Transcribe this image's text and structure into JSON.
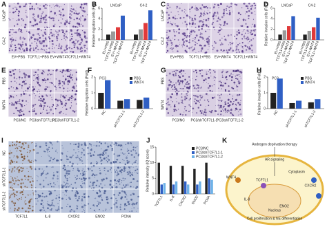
{
  "panel_labels": [
    "A",
    "B",
    "C",
    "D",
    "E",
    "F",
    "G",
    "H",
    "I",
    "J",
    "K"
  ],
  "panel_a": {
    "rows": [
      "LNCaP",
      "C4-2"
    ],
    "columns": [
      "EV+PBS",
      "TCF7L1+PBS",
      "EV+WNT4",
      "TCF7L1+WNT4"
    ]
  },
  "panel_c": {
    "rows": [
      "LNCaP",
      "C4-2"
    ],
    "columns": [
      "EV+PBS",
      "TCF7L1+PBS",
      "EV+WNT4",
      "TCF7L1+WNT4"
    ]
  },
  "panel_e": {
    "rows": [
      "PBS",
      "WNT4"
    ],
    "columns": [
      "PC3/NC",
      "PC3/shTCF7L1-1",
      "PC3/shTCF7L1-2"
    ]
  },
  "panel_g": {
    "rows": [
      "PBS",
      "WNT4"
    ],
    "columns": [
      "PC3/NC",
      "PC3/shTCF7L1-1",
      "PC3/shTCF7L1-2"
    ]
  },
  "panel_i": {
    "rows": [
      "NC",
      "shTCF7L1-1",
      "shTCF7L1-2"
    ],
    "columns": [
      "TCF7L1",
      "IL-8",
      "CXCR2",
      "ENO2",
      "PCNA"
    ]
  },
  "panel_k": {
    "texts": [
      "Androgen deprivation therapy",
      "AR signaling",
      "WNT4",
      "TCF7L1",
      "IL-8",
      "CXCR2",
      "ENO2",
      "Cytoplasm",
      "Nucleus",
      "Cell proliferation & NE differentiation"
    ]
  },
  "chart_data": [
    {
      "type": "bar",
      "ylabel": "Relative migration cells (Fold)",
      "categories": [
        "LNCaP",
        "C4-2"
      ],
      "series": [
        {
          "name": "EV+PBS",
          "color": "#222222",
          "values": [
            1,
            1
          ]
        },
        {
          "name": "TCF7L1+PBS",
          "color": "#9a9a9a",
          "values": [
            1.6,
            2
          ]
        },
        {
          "name": "EV+WNT4",
          "color": "#e03a3a",
          "values": [
            2.4,
            3.2
          ]
        },
        {
          "name": "TCF7L1+WNT4",
          "color": "#2f5fc4",
          "values": [
            4.6,
            5.6
          ]
        }
      ],
      "ylim": [
        0,
        6
      ],
      "yticks": [
        0,
        2,
        4,
        6
      ],
      "rotated_names": true
    },
    {
      "type": "bar",
      "ylabel": "Relative invasion cells (Fold)",
      "categories": [
        "LNCaP",
        "C4-2"
      ],
      "series": [
        {
          "name": "EV+PBS",
          "color": "#222222",
          "values": [
            1,
            1
          ]
        },
        {
          "name": "TCF7L1+PBS",
          "color": "#9a9a9a",
          "values": [
            1.8,
            1.7
          ]
        },
        {
          "name": "EV+WNT4",
          "color": "#e03a3a",
          "values": [
            2.6,
            2.4
          ]
        },
        {
          "name": "TCF7L1+WNT4",
          "color": "#2f5fc4",
          "values": [
            4.5,
            4.2
          ]
        }
      ],
      "ylim": [
        0,
        6
      ],
      "yticks": [
        0,
        2,
        4,
        6
      ],
      "rotated_names": true
    },
    {
      "type": "bar",
      "ylabel": "Relative migration cells (Fold)",
      "title": "PC3",
      "categories": [
        "NC",
        "shTCF7L1-1",
        "shTCF7L1-2"
      ],
      "series": [
        {
          "name": "PBS",
          "color": "#222222",
          "values": [
            1,
            0.5,
            0.55
          ]
        },
        {
          "name": "WNT4",
          "color": "#2f5fc4",
          "values": [
            1.8,
            0.6,
            0.7
          ]
        }
      ],
      "ylim": [
        0,
        2
      ],
      "yticks": [
        0,
        1,
        2
      ],
      "legend": "upper right"
    },
    {
      "type": "bar",
      "ylabel": "Relative invasion cells (Fold)",
      "title": "PC3",
      "categories": [
        "NC",
        "shTCF7L1-1",
        "shTCF7L1-2"
      ],
      "series": [
        {
          "name": "PBS",
          "color": "#222222",
          "values": [
            1,
            0.35,
            0.4
          ]
        },
        {
          "name": "WNT4",
          "color": "#2f5fc4",
          "values": [
            1.9,
            0.5,
            0.6
          ]
        }
      ],
      "ylim": [
        0,
        2
      ],
      "yticks": [
        0,
        1,
        2
      ],
      "legend": "upper right"
    },
    {
      "type": "bar",
      "ylabel": "Relative intensity (IQ score)",
      "categories": [
        "TCF7L1",
        "IL-8",
        "CXCR2",
        "ENO2",
        "PCNA"
      ],
      "series": [
        {
          "name": "PC3/NC",
          "color": "#222222",
          "values": [
            10,
            9,
            9,
            8,
            10
          ]
        },
        {
          "name": "PC3/shTCF7L1-1",
          "color": "#2f5fc4",
          "values": [
            3,
            3,
            4,
            3,
            5
          ]
        },
        {
          "name": "PC3/shTCF7L1-2",
          "color": "#6fb3e8",
          "values": [
            3.5,
            4,
            3,
            4,
            4.5
          ]
        }
      ],
      "ylim": [
        0,
        15
      ],
      "yticks": [
        0,
        5,
        10,
        15
      ],
      "legend": "upper right"
    }
  ]
}
